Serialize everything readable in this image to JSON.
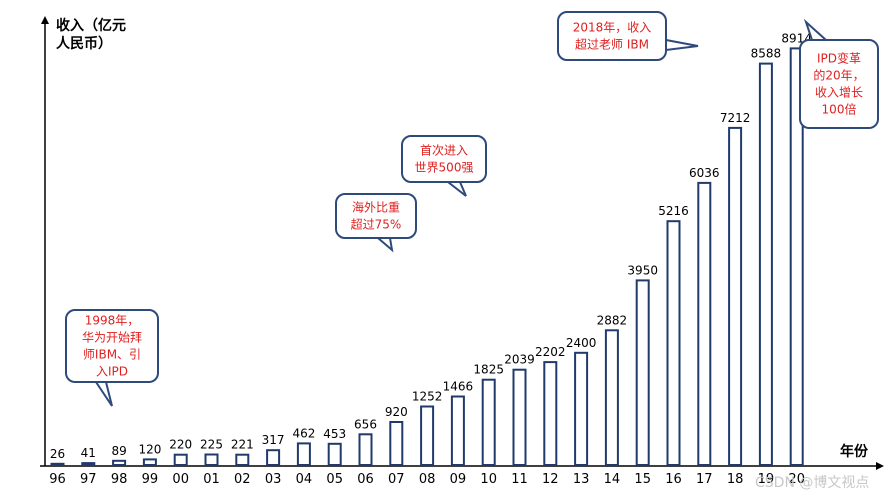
{
  "chart_data": {
    "type": "bar",
    "ylabel_lines": [
      "收入（亿元",
      "人民币）"
    ],
    "xlabel": "年份",
    "categories": [
      "96",
      "97",
      "98",
      "99",
      "00",
      "01",
      "02",
      "03",
      "04",
      "05",
      "06",
      "07",
      "08",
      "09",
      "10",
      "11",
      "12",
      "13",
      "14",
      "15",
      "16",
      "17",
      "18",
      "19",
      "20"
    ],
    "values": [
      26,
      41,
      89,
      120,
      220,
      225,
      221,
      317,
      462,
      453,
      656,
      920,
      1252,
      1466,
      1825,
      2039,
      2202,
      2400,
      2882,
      3950,
      5216,
      6036,
      7212,
      8588,
      8914
    ],
    "ylim": [
      0,
      9500
    ],
    "grid": false,
    "legend": "none"
  },
  "annotations": [
    {
      "lines": [
        "1998年，",
        "华为开始拜",
        "师IBM、引",
        "入IPD"
      ]
    },
    {
      "lines": [
        "海外比重",
        "超过75%"
      ]
    },
    {
      "lines": [
        "首次进入",
        "世界500强"
      ]
    },
    {
      "lines": [
        "2018年，收入",
        "超过老师 IBM"
      ]
    },
    {
      "lines": [
        "IPD变革",
        "的20年，",
        "收入增长",
        "100倍"
      ]
    }
  ],
  "watermark": "CSDN @博文视点",
  "colors": {
    "bar_stroke": "#1f3a6b",
    "callout_text": "#e02020",
    "callout_border": "#2e4a7a"
  }
}
